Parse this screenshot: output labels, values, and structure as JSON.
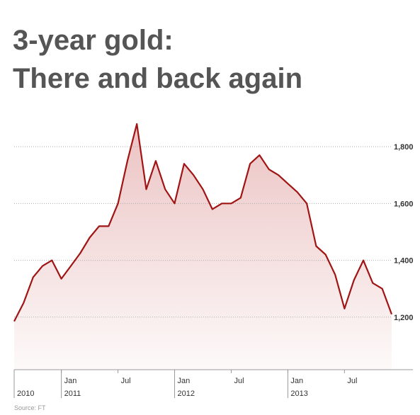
{
  "chart_data": {
    "type": "area",
    "title": [
      "3-year gold:",
      "There and back again"
    ],
    "source": "Source: FT",
    "x": [
      "2010-08",
      "2010-09",
      "2010-10",
      "2010-11",
      "2010-12",
      "2011-01",
      "2011-02",
      "2011-03",
      "2011-04",
      "2011-05",
      "2011-06",
      "2011-07",
      "2011-08",
      "2011-09",
      "2011-10",
      "2011-11",
      "2011-12",
      "2012-01",
      "2012-02",
      "2012-03",
      "2012-04",
      "2012-05",
      "2012-06",
      "2012-07",
      "2012-08",
      "2012-09",
      "2012-10",
      "2012-11",
      "2012-12",
      "2013-01",
      "2013-02",
      "2013-03",
      "2013-04",
      "2013-05",
      "2013-06",
      "2013-07",
      "2013-08",
      "2013-09",
      "2013-10",
      "2013-11",
      "2013-12"
    ],
    "values": [
      1185,
      1250,
      1340,
      1380,
      1400,
      1335,
      1380,
      1425,
      1480,
      1520,
      1520,
      1600,
      1750,
      1880,
      1650,
      1750,
      1650,
      1600,
      1740,
      1700,
      1650,
      1580,
      1600,
      1600,
      1620,
      1740,
      1770,
      1720,
      1700,
      1670,
      1640,
      1600,
      1450,
      1420,
      1350,
      1230,
      1330,
      1400,
      1320,
      1300,
      1210
    ],
    "color": "#a01414",
    "fill": "#e8b8b8",
    "xlim": [
      "2010-08",
      "2013-12"
    ],
    "xticks": [
      {
        "value": "2011-01",
        "label": "Jan"
      },
      {
        "value": "2011-07",
        "label": "Jul"
      },
      {
        "value": "2012-01",
        "label": "Jan"
      },
      {
        "value": "2012-07",
        "label": "Jul"
      },
      {
        "value": "2013-01",
        "label": "Jan"
      },
      {
        "value": "2013-07",
        "label": "Jul"
      }
    ],
    "year_ticks": [
      {
        "value": "2010-08",
        "label": "2010"
      },
      {
        "value": "2011-01",
        "label": "2011"
      },
      {
        "value": "2012-01",
        "label": "2012"
      },
      {
        "value": "2013-01",
        "label": "2013"
      }
    ],
    "ylim": [
      1015,
      1900
    ],
    "yticks": [
      {
        "value": 1200,
        "label": "1,200"
      },
      {
        "value": 1400,
        "label": "1,400"
      },
      {
        "value": 1600,
        "label": "1,600"
      },
      {
        "value": 1800,
        "label": "1,800"
      }
    ],
    "grid": true
  }
}
